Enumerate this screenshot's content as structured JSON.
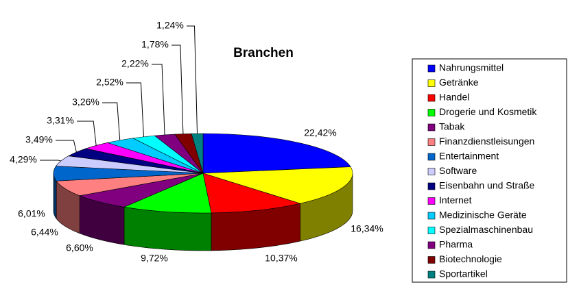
{
  "chart_data": {
    "type": "pie",
    "title": "Branchen",
    "categories": [
      "Nahrungsmittel",
      "Getränke",
      "Handel",
      "Drogerie und Kosmetik",
      "Tabak",
      "Finanzdienstleisungen",
      "Entertainment",
      "Software",
      "Eisenbahn und Straße",
      "Internet",
      "Medizinische Geräte",
      "Spezialmaschinenbau",
      "Pharma",
      "Biotechnologie",
      "Sportartikel"
    ],
    "values": [
      22.42,
      16.34,
      10.37,
      9.72,
      6.6,
      6.44,
      6.01,
      4.29,
      3.49,
      3.31,
      3.26,
      2.52,
      2.22,
      1.78,
      1.24
    ],
    "value_labels": [
      "22,42%",
      "16,34%",
      "10,37%",
      "9,72%",
      "6,60%",
      "6,44%",
      "6,01%",
      "4,29%",
      "3,49%",
      "3,31%",
      "3,26%",
      "2,52%",
      "2,22%",
      "1,78%",
      "1,24%"
    ],
    "colors": [
      "#0000ff",
      "#ffff00",
      "#ff0000",
      "#00ff00",
      "#800080",
      "#ff8080",
      "#0066cc",
      "#ccccff",
      "#000080",
      "#ff00ff",
      "#00ccff",
      "#00ffff",
      "#800080",
      "#800000",
      "#008080"
    ],
    "legend_position": "right"
  }
}
